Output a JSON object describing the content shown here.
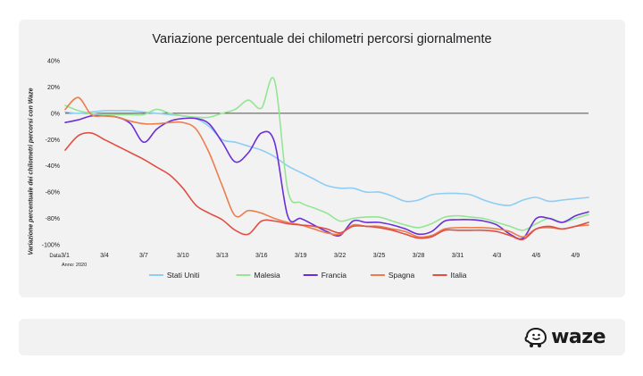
{
  "chart_data": {
    "type": "line",
    "title": "Variazione percentuale dei chilometri percorsi giornalmente",
    "ylabel": "Variazione percentuale dei chilometri percorsi con Waze",
    "xlabel": "Data",
    "year_label": "Anno: 2020",
    "ylim": [
      -100,
      40
    ],
    "yticks": [
      "40%",
      "20%",
      "0%",
      "-20%",
      "-40%",
      "-60%",
      "-80%",
      "-100%"
    ],
    "ytick_values": [
      40,
      20,
      0,
      -20,
      -40,
      -60,
      -80,
      -100
    ],
    "x": [
      "3/1",
      "3/2",
      "3/3",
      "3/4",
      "3/5",
      "3/6",
      "3/7",
      "3/8",
      "3/9",
      "3/10",
      "3/11",
      "3/12",
      "3/13",
      "3/14",
      "3/15",
      "3/16",
      "3/17",
      "3/18",
      "3/19",
      "3/20",
      "3/21",
      "3/22",
      "3/23",
      "3/24",
      "3/25",
      "3/26",
      "3/27",
      "3/28",
      "3/29",
      "3/30",
      "3/31",
      "4/1",
      "4/2",
      "4/3",
      "4/4",
      "4/5",
      "4/6",
      "4/7",
      "4/8",
      "4/9",
      "4/10"
    ],
    "xtick_labels": [
      "3/1",
      "3/4",
      "3/7",
      "3/10",
      "3/13",
      "3/16",
      "3/19",
      "3/22",
      "3/25",
      "3/28",
      "3/31",
      "4/3",
      "4/6",
      "4/9"
    ],
    "grid": false,
    "legend_position": "bottom",
    "series": [
      {
        "name": "Stati Uniti",
        "color": "#8ecdf4",
        "values": [
          1,
          0,
          1,
          2,
          2,
          2,
          1,
          0,
          -1,
          -2,
          -4,
          -10,
          -20,
          -22,
          -25,
          -28,
          -33,
          -40,
          -45,
          -50,
          -55,
          -57,
          -57,
          -60,
          -60,
          -63,
          -67,
          -66,
          -62,
          -61,
          -61,
          -62,
          -66,
          -69,
          -70,
          -66,
          -64,
          -67,
          -66,
          -65,
          -64
        ]
      },
      {
        "name": "Malesia",
        "color": "#94e594",
        "values": [
          6,
          2,
          0,
          -1,
          -1,
          -1,
          -1,
          3,
          0,
          -2,
          -3,
          -3,
          0,
          3,
          10,
          4,
          25,
          -58,
          -68,
          -72,
          -76,
          -82,
          -80,
          -79,
          -79,
          -82,
          -85,
          -87,
          -84,
          -79,
          -78,
          -79,
          -80,
          -83,
          -86,
          -89,
          -84,
          -80,
          -83,
          -80,
          -77
        ]
      },
      {
        "name": "Francia",
        "color": "#6a2fd6",
        "values": [
          -7,
          -5,
          -2,
          -2,
          -3,
          -8,
          -22,
          -12,
          -6,
          -4,
          -4,
          -8,
          -22,
          -37,
          -30,
          -15,
          -22,
          -78,
          -80,
          -85,
          -90,
          -93,
          -82,
          -83,
          -83,
          -85,
          -88,
          -92,
          -90,
          -82,
          -81,
          -81,
          -82,
          -85,
          -92,
          -95,
          -80,
          -80,
          -83,
          -78,
          -75
        ]
      },
      {
        "name": "Spagna",
        "color": "#ea7e4d",
        "values": [
          3,
          12,
          -1,
          -2,
          -3,
          -6,
          -8,
          -8,
          -7,
          -7,
          -12,
          -30,
          -55,
          -78,
          -74,
          -76,
          -80,
          -83,
          -85,
          -88,
          -91,
          -92,
          -85,
          -86,
          -86,
          -88,
          -90,
          -94,
          -93,
          -88,
          -87,
          -87,
          -87,
          -88,
          -90,
          -94,
          -88,
          -87,
          -88,
          -86,
          -85
        ]
      },
      {
        "name": "Italia",
        "color": "#e04f45",
        "values": [
          -28,
          -17,
          -15,
          -20,
          -25,
          -30,
          -35,
          -41,
          -47,
          -57,
          -70,
          -76,
          -81,
          -89,
          -92,
          -82,
          -82,
          -84,
          -85,
          -86,
          -88,
          -91,
          -86,
          -86,
          -87,
          -89,
          -92,
          -95,
          -94,
          -89,
          -89,
          -89,
          -89,
          -90,
          -93,
          -96,
          -88,
          -86,
          -88,
          -86,
          -83
        ]
      }
    ]
  }
}
